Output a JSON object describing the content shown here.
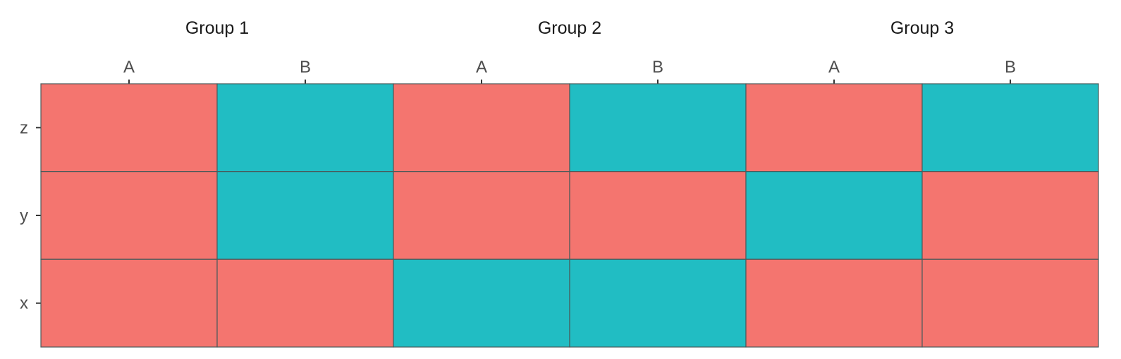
{
  "chart_data": {
    "type": "heatmap",
    "title": "",
    "xlabel": "",
    "ylabel": "",
    "grid": false,
    "legend": "none",
    "facets": [
      {
        "label": "Group 1",
        "x_categories": [
          "A",
          "B"
        ],
        "y_categories": [
          "x",
          "y",
          "z"
        ],
        "cells": [
          {
            "x": "A",
            "y": "z",
            "value": "1"
          },
          {
            "x": "B",
            "y": "z",
            "value": "2"
          },
          {
            "x": "A",
            "y": "y",
            "value": "1"
          },
          {
            "x": "B",
            "y": "y",
            "value": "2"
          },
          {
            "x": "A",
            "y": "x",
            "value": "1"
          },
          {
            "x": "B",
            "y": "x",
            "value": "1"
          }
        ]
      },
      {
        "label": "Group 2",
        "x_categories": [
          "A",
          "B"
        ],
        "y_categories": [
          "x",
          "y",
          "z"
        ],
        "cells": [
          {
            "x": "A",
            "y": "z",
            "value": "1"
          },
          {
            "x": "B",
            "y": "z",
            "value": "2"
          },
          {
            "x": "A",
            "y": "y",
            "value": "1"
          },
          {
            "x": "B",
            "y": "y",
            "value": "1"
          },
          {
            "x": "A",
            "y": "x",
            "value": "2"
          },
          {
            "x": "B",
            "y": "x",
            "value": "2"
          }
        ]
      },
      {
        "label": "Group 3",
        "x_categories": [
          "A",
          "B"
        ],
        "y_categories": [
          "x",
          "y",
          "z"
        ],
        "cells": [
          {
            "x": "A",
            "y": "z",
            "value": "1"
          },
          {
            "x": "B",
            "y": "z",
            "value": "2"
          },
          {
            "x": "A",
            "y": "y",
            "value": "2"
          },
          {
            "x": "B",
            "y": "y",
            "value": "1"
          },
          {
            "x": "A",
            "y": "x",
            "value": "1"
          },
          {
            "x": "B",
            "y": "x",
            "value": "1"
          }
        ]
      }
    ],
    "colors": {
      "1": "#F4756F",
      "2": "#21BDC3"
    }
  }
}
